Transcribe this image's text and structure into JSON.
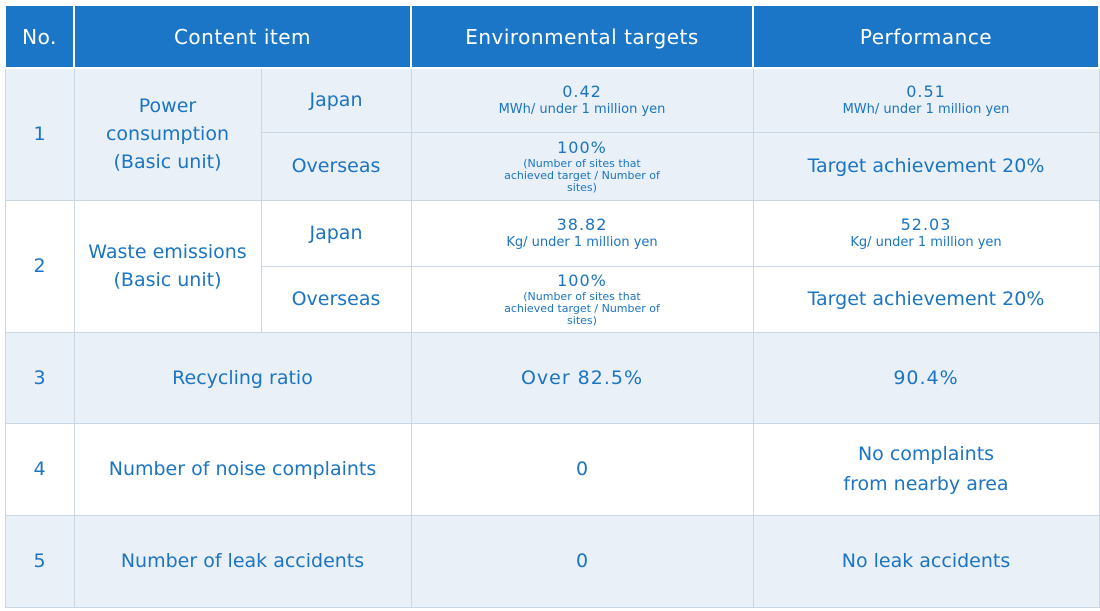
{
  "headers": [
    "No.",
    "Content item",
    "Environmental targets",
    "Performance"
  ],
  "rows": [
    {
      "no": "1",
      "item": "Power consumption (Basic unit)",
      "sub": [
        {
          "region": "Japan",
          "target_value": "0.42",
          "target_unit": "MWh/ under 1 million yen",
          "perf_value": "0.51",
          "perf_unit": "MWh/ under 1 million yen"
        },
        {
          "region": "Overseas",
          "target_value": "100%",
          "target_note": "(Number of sites that achieved target / Number of sites)",
          "perf_text": "Target achievement 20%"
        }
      ]
    },
    {
      "no": "2",
      "item": "Waste emissions (Basic unit)",
      "sub": [
        {
          "region": "Japan",
          "target_value": "38.82",
          "target_unit": "Kg/ under 1 million yen",
          "perf_value": "52.03",
          "perf_unit": "Kg/ under 1 million yen"
        },
        {
          "region": "Overseas",
          "target_value": "100%",
          "target_note": "(Number of sites that achieved target / Number of sites)",
          "perf_text": "Target achievement 20%"
        }
      ]
    },
    {
      "no": "3",
      "item": "Recycling ratio",
      "target": "Over 82.5%",
      "performance": "90.4%"
    },
    {
      "no": "4",
      "item": "Number of noise complaints",
      "target": "0",
      "performance": "No complaints from nearby area"
    },
    {
      "no": "5",
      "item": "Number of leak accidents",
      "target": "0",
      "performance": "No leak accidents"
    }
  ]
}
